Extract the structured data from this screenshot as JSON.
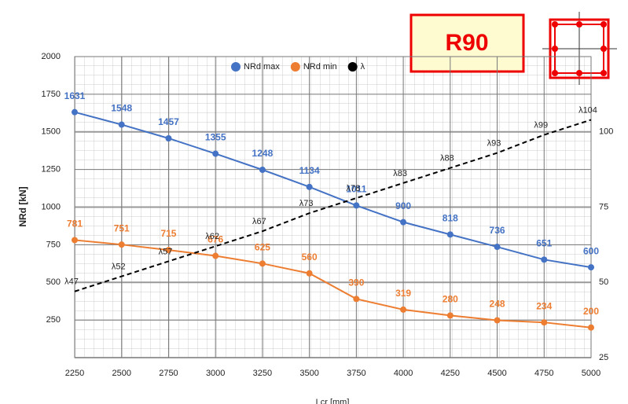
{
  "chart_data": {
    "type": "line",
    "badge": "R90",
    "ylabel": "NRd [kN]",
    "xlabel": "Lcr [mm]",
    "x": [
      2250,
      2500,
      2750,
      3000,
      3250,
      3500,
      3750,
      4000,
      4250,
      4500,
      4750,
      5000
    ],
    "xlim": [
      2250,
      5000
    ],
    "xticks": [
      2250,
      2500,
      2750,
      3000,
      3250,
      3500,
      3750,
      4000,
      4250,
      4500,
      4750,
      5000
    ],
    "ylim": [
      0,
      2000
    ],
    "yticks": [
      250,
      500,
      750,
      1000,
      1250,
      1500,
      1750,
      2000
    ],
    "y2lim": [
      25,
      125
    ],
    "y2ticks": [
      25,
      50,
      75,
      100
    ],
    "grid": true,
    "legend": "top",
    "series": [
      {
        "name": "NRd max",
        "color": "#4472c4",
        "values": [
          1631,
          1548,
          1457,
          1355,
          1248,
          1134,
          1011,
          900,
          818,
          736,
          651,
          600
        ]
      },
      {
        "name": "NRd min",
        "color": "#ed7d31",
        "values": [
          781,
          751,
          715,
          676,
          625,
          560,
          390,
          319,
          280,
          248,
          234,
          200
        ]
      },
      {
        "name": "λ",
        "color": "#000000",
        "axis": "y2",
        "dashed": true,
        "values": [
          47,
          52,
          57,
          62,
          67,
          73,
          78,
          83,
          88,
          93,
          99,
          104
        ],
        "value_labels": [
          "λ47",
          "λ52",
          "λ57",
          "λ62",
          "λ67",
          "λ73",
          "λ78",
          "λ83",
          "λ88",
          "λ93",
          "λ99",
          "λ104"
        ]
      }
    ]
  }
}
